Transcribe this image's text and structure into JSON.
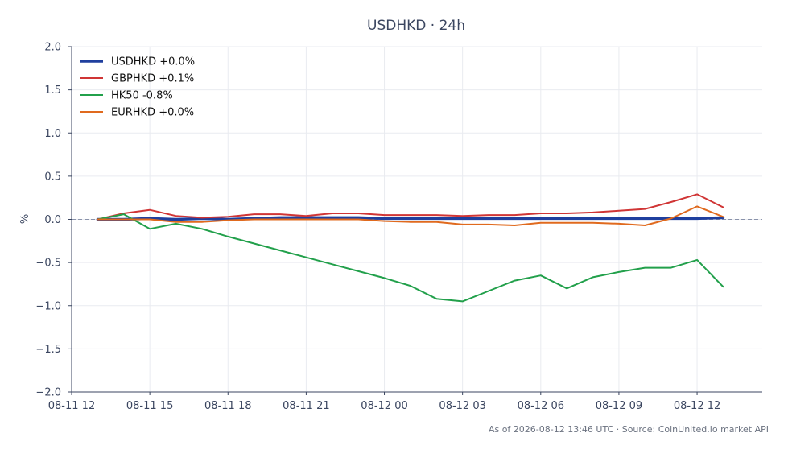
{
  "chart_data": {
    "type": "line",
    "title": "USDHKD · 24h",
    "xlabel": "",
    "ylabel": "%",
    "ylim": [
      -2.0,
      2.0
    ],
    "yticks": [
      "−2.0",
      "−1.5",
      "−1.0",
      "−0.5",
      "0.0",
      "0.5",
      "1.0",
      "1.5",
      "2.0"
    ],
    "ytick_values": [
      -2.0,
      -1.5,
      -1.0,
      -0.5,
      0.0,
      0.5,
      1.0,
      1.5,
      2.0
    ],
    "xlim": [
      "2026-08-11 12:00",
      "2026-08-12 14:30"
    ],
    "xticks": [
      "08-11 12",
      "08-11 15",
      "08-11 18",
      "08-11 21",
      "08-12 00",
      "08-12 03",
      "08-12 06",
      "08-12 09",
      "08-12 12"
    ],
    "xtick_values": [
      "2026-08-11 12:00",
      "2026-08-11 15:00",
      "2026-08-11 18:00",
      "2026-08-11 21:00",
      "2026-08-12 00:00",
      "2026-08-12 03:00",
      "2026-08-12 06:00",
      "2026-08-12 09:00",
      "2026-08-12 12:00"
    ],
    "x": [
      "2026-08-11 13:00",
      "2026-08-11 14:00",
      "2026-08-11 15:00",
      "2026-08-11 16:00",
      "2026-08-11 17:00",
      "2026-08-11 18:00",
      "2026-08-11 19:00",
      "2026-08-11 20:00",
      "2026-08-11 21:00",
      "2026-08-11 22:00",
      "2026-08-11 23:00",
      "2026-08-12 00:00",
      "2026-08-12 01:00",
      "2026-08-12 02:00",
      "2026-08-12 03:00",
      "2026-08-12 04:00",
      "2026-08-12 05:00",
      "2026-08-12 06:00",
      "2026-08-12 07:00",
      "2026-08-12 08:00",
      "2026-08-12 09:00",
      "2026-08-12 10:00",
      "2026-08-12 11:00",
      "2026-08-12 12:00",
      "2026-08-12 13:00"
    ],
    "series": [
      {
        "name": "USDHKD +0.0%",
        "color": "#1f3f9e",
        "width": 3.5,
        "values": [
          0.0,
          0.0,
          0.01,
          0.0,
          0.01,
          0.0,
          0.01,
          0.02,
          0.02,
          0.02,
          0.02,
          0.01,
          0.01,
          0.01,
          0.01,
          0.01,
          0.01,
          0.01,
          0.01,
          0.01,
          0.01,
          0.01,
          0.01,
          0.01,
          0.02
        ]
      },
      {
        "name": "GBPHKD +0.1%",
        "color": "#d03535",
        "width": 2,
        "values": [
          0.0,
          0.07,
          0.11,
          0.04,
          0.02,
          0.03,
          0.06,
          0.06,
          0.04,
          0.07,
          0.07,
          0.05,
          0.05,
          0.05,
          0.04,
          0.05,
          0.05,
          0.07,
          0.07,
          0.08,
          0.1,
          0.12,
          0.2,
          0.29,
          0.14
        ]
      },
      {
        "name": "HK50 -0.8%",
        "color": "#22a04b",
        "width": 2,
        "values": [
          0.0,
          0.06,
          -0.11,
          -0.05,
          -0.11,
          -0.2,
          -0.28,
          -0.36,
          -0.44,
          -0.52,
          -0.6,
          -0.68,
          -0.77,
          -0.92,
          -0.95,
          -0.83,
          -0.71,
          -0.65,
          -0.8,
          -0.67,
          -0.61,
          -0.56,
          -0.56,
          -0.47,
          -0.78
        ]
      },
      {
        "name": "EURHKD +0.0%",
        "color": "#e06a1e",
        "width": 2,
        "values": [
          0.0,
          0.0,
          0.0,
          -0.03,
          -0.03,
          -0.01,
          0.0,
          0.0,
          0.0,
          0.0,
          0.0,
          -0.02,
          -0.03,
          -0.03,
          -0.06,
          -0.06,
          -0.07,
          -0.04,
          -0.04,
          -0.04,
          -0.05,
          -0.07,
          0.01,
          0.15,
          0.03
        ]
      }
    ],
    "baseline": 0.0,
    "grid": true,
    "legend_position": "top-left"
  },
  "footer": {
    "text": "As of 2026-08-12 13:46 UTC · Source: CoinUnited.io market API"
  }
}
